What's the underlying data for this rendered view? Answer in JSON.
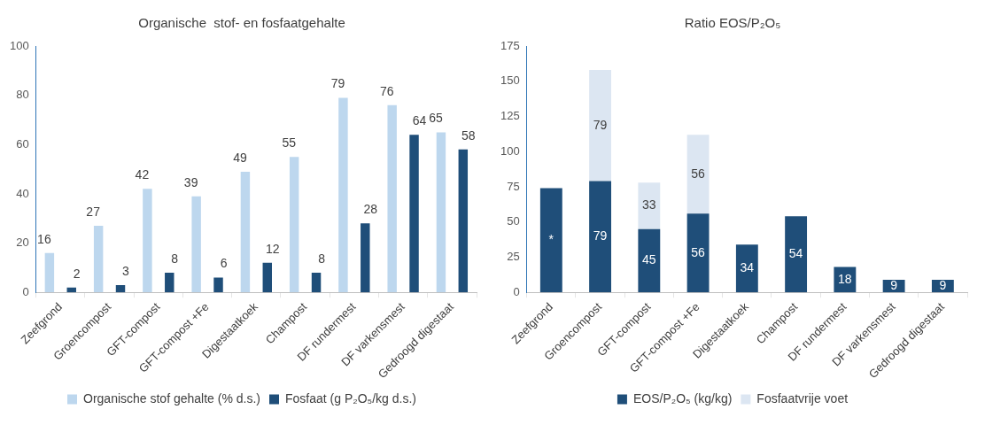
{
  "chart_data": [
    {
      "type": "bar",
      "title": "Organische  stof- en fosfaatgehalte",
      "categories": [
        "Zeefgrond",
        "Groencompost",
        "GFT-compost",
        "GFT-compost +Fe",
        "Digestaatkoek",
        "Champost",
        "DF rundermest",
        "DF varkensmest",
        "Gedroogd digestaat"
      ],
      "series": [
        {
          "name": "Organische stof gehalte (% d.s.)",
          "color": "#bdd7ee",
          "values": [
            16,
            27,
            42,
            39,
            49,
            55,
            79,
            76,
            65
          ]
        },
        {
          "name": "Fosfaat (g P₂O₅/kg d.s.)",
          "color": "#1f4e79",
          "values": [
            2,
            3,
            8,
            6,
            12,
            8,
            28,
            64,
            58
          ]
        }
      ],
      "ylim": [
        0,
        100
      ],
      "yticks": [
        0,
        20,
        40,
        60,
        80,
        100
      ],
      "data_labels": true,
      "legend": "bottom",
      "grid": false
    },
    {
      "type": "bar",
      "title": "Ratio EOS/P₂O₅",
      "categories": [
        "Zeefgrond",
        "Groencompost",
        "GFT-compost",
        "GFT-compost +Fe",
        "Digestaatkoek",
        "Champost",
        "DF rundermest",
        "DF varkensmest",
        "Gedroogd digestaat"
      ],
      "stacked": true,
      "series": [
        {
          "name": "EOS/P₂O₅ (kg/kg)",
          "color": "#1f4e79",
          "values": [
            74,
            79,
            45,
            56,
            34,
            54,
            18,
            9,
            9
          ],
          "value_labels": [
            "*",
            "79",
            "45",
            "56",
            "34",
            "54",
            "18",
            "9",
            "9"
          ]
        },
        {
          "name": "Fosfaatvrije voet",
          "color": "#dce6f2",
          "values": [
            null,
            79,
            33,
            56,
            null,
            null,
            null,
            null,
            null
          ],
          "value_labels": [
            null,
            "79",
            "33",
            "56",
            null,
            null,
            null,
            null,
            null
          ]
        }
      ],
      "ylim": [
        0,
        175
      ],
      "yticks": [
        0,
        25,
        50,
        75,
        100,
        125,
        150,
        175
      ],
      "legend": "bottom",
      "grid": false
    }
  ]
}
